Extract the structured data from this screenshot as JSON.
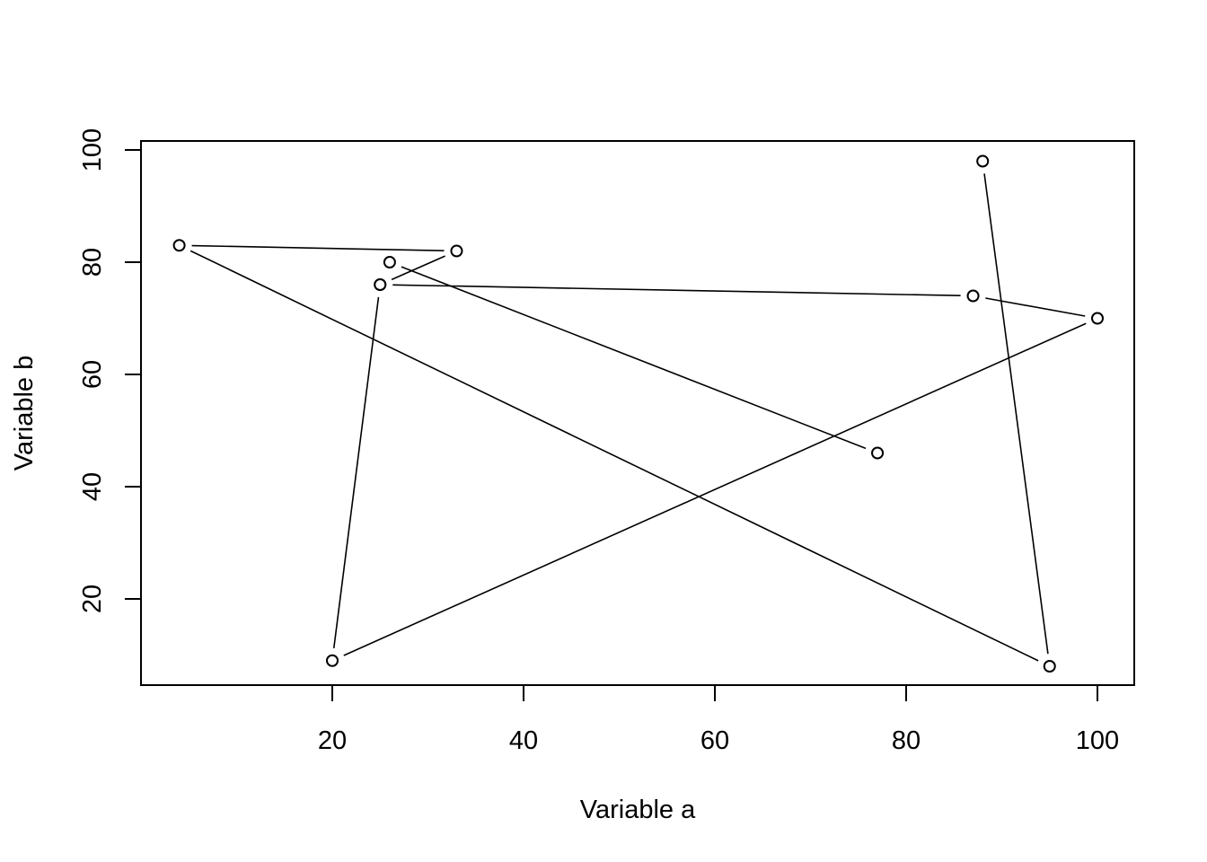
{
  "chart_data": {
    "type": "line",
    "title": "",
    "xlabel": "Variable a",
    "ylabel": "Variable b",
    "xlim": [
      0,
      102
    ],
    "ylim": [
      5,
      102
    ],
    "xticks": [
      20,
      40,
      60,
      80,
      100
    ],
    "yticks": [
      20,
      40,
      60,
      80,
      100
    ],
    "xtick_labels": [
      "20",
      "40",
      "60",
      "80",
      "100"
    ],
    "ytick_labels": [
      "20",
      "40",
      "60",
      "80",
      "100"
    ],
    "grid": false,
    "marker": "open-circle",
    "line_style": "overplotted lines with gaps at points",
    "series": [
      {
        "x": [
          88,
          95,
          4,
          33,
          25,
          20,
          100,
          87,
          25,
          26,
          77
        ],
        "y": [
          98,
          8,
          83,
          82,
          76,
          9,
          70,
          74,
          76,
          80,
          46
        ]
      }
    ],
    "colors": {
      "line": "#000000",
      "marker": "#000000",
      "background": "#ffffff"
    }
  }
}
